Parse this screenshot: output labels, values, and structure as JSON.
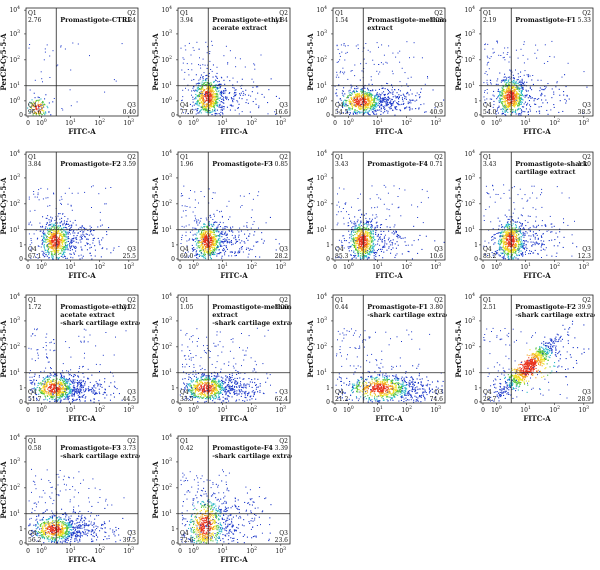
{
  "axis": {
    "xlabel": "FITC-A",
    "ylabel": "PerCP-Cy5-5-A",
    "xticks": [
      "0",
      "10",
      "10",
      "10",
      "10"
    ],
    "xsup": [
      "",
      "0",
      "1",
      "2",
      "3"
    ],
    "yticks": [
      "0",
      "10",
      "10",
      "10",
      "10",
      "10"
    ],
    "ysup": [
      "",
      "0",
      "1",
      "2",
      "3",
      "4"
    ],
    "yticks_alt": [
      "0",
      "1",
      "10",
      "10",
      "10",
      "10"
    ],
    "ysup_alt": [
      "",
      "",
      "1",
      "2",
      "3",
      "4"
    ],
    "quadrant_names": [
      "Q1",
      "Q2",
      "Q3",
      "Q4"
    ]
  },
  "chart_data": [
    {
      "type": "scatter",
      "title": [
        "Promastigote-CTRL"
      ],
      "q1": "2.76",
      "q2": "0.24",
      "q3": "0.40",
      "q4": "96.6",
      "pattern": "ctrl",
      "yalt": false
    },
    {
      "type": "scatter",
      "title": [
        "Promastigote-ethyl",
        "acerate extract"
      ],
      "q1": "3.94",
      "q2": "1.84",
      "q3": "16.6",
      "q4": "77.6",
      "pattern": "cluster",
      "yalt": false
    },
    {
      "type": "scatter",
      "title": [
        "Promastigote-methanol",
        "extract"
      ],
      "q1": "1.54",
      "q2": "3.03",
      "q3": "40.9",
      "q4": "54.5",
      "pattern": "spread",
      "yalt": false
    },
    {
      "type": "scatter",
      "title": [
        "Promastigote-F1"
      ],
      "q1": "2.19",
      "q2": "5.33",
      "q3": "38.5",
      "q4": "54.0",
      "pattern": "cluster",
      "yalt": true
    },
    {
      "type": "scatter",
      "title": [
        "Promastigote-F2"
      ],
      "q1": "3.84",
      "q2": "3.59",
      "q3": "25.5",
      "q4": "67.1",
      "pattern": "cluster",
      "yalt": true
    },
    {
      "type": "scatter",
      "title": [
        "Promastigote-F3"
      ],
      "q1": "1.96",
      "q2": "0.85",
      "q3": "28.2",
      "q4": "69.0",
      "pattern": "cluster",
      "yalt": true
    },
    {
      "type": "scatter",
      "title": [
        "Promastigote-F4"
      ],
      "q1": "3.43",
      "q2": "0.71",
      "q3": "10.6",
      "q4": "85.3",
      "pattern": "cluster",
      "yalt": true
    },
    {
      "type": "scatter",
      "title": [
        "Promastigote-shark",
        "cartilage extract"
      ],
      "q1": "3.43",
      "q2": "1.10",
      "q3": "12.3",
      "q4": "83.2",
      "pattern": "cluster",
      "yalt": true
    },
    {
      "type": "scatter",
      "title": [
        "Promastigote-ethyl",
        "acetate extract",
        "-shark cartilage extract"
      ],
      "q1": "1.72",
      "q2": "2.02",
      "q3": "44.5",
      "q4": "51.7",
      "pattern": "spread",
      "yalt": true
    },
    {
      "type": "scatter",
      "title": [
        "Promastigote-methanol",
        "extract",
        "-shark cartilage extract"
      ],
      "q1": "1.05",
      "q2": "3.06",
      "q3": "62.4",
      "q4": "33.5",
      "pattern": "spread",
      "yalt": true
    },
    {
      "type": "scatter",
      "title": [
        "Promastigote-F1",
        "-shark cartilage extract"
      ],
      "q1": "0.44",
      "q2": "3.80",
      "q3": "74.6",
      "q4": "21.2",
      "pattern": "wide",
      "yalt": true
    },
    {
      "type": "scatter",
      "title": [
        "Promastigote-F2",
        "-shark cartilage extract"
      ],
      "q1": "2.51",
      "q2": "39.9",
      "q3": "28.9",
      "q4": "28.7",
      "pattern": "diagonal",
      "yalt": true
    },
    {
      "type": "scatter",
      "title": [
        "Promastigote-F3",
        "-shark cartilage extract"
      ],
      "q1": "0.58",
      "q2": "3.73",
      "q3": "39.5",
      "q4": "56.2",
      "pattern": "spread",
      "yalt": true
    },
    {
      "type": "scatter",
      "title": [
        "Promastigote-F4",
        "-shark cartilage extract"
      ],
      "q1": "0.42",
      "q2": "3.39",
      "q3": "23.6",
      "q4": "72.6",
      "pattern": "vertical",
      "yalt": true
    }
  ]
}
